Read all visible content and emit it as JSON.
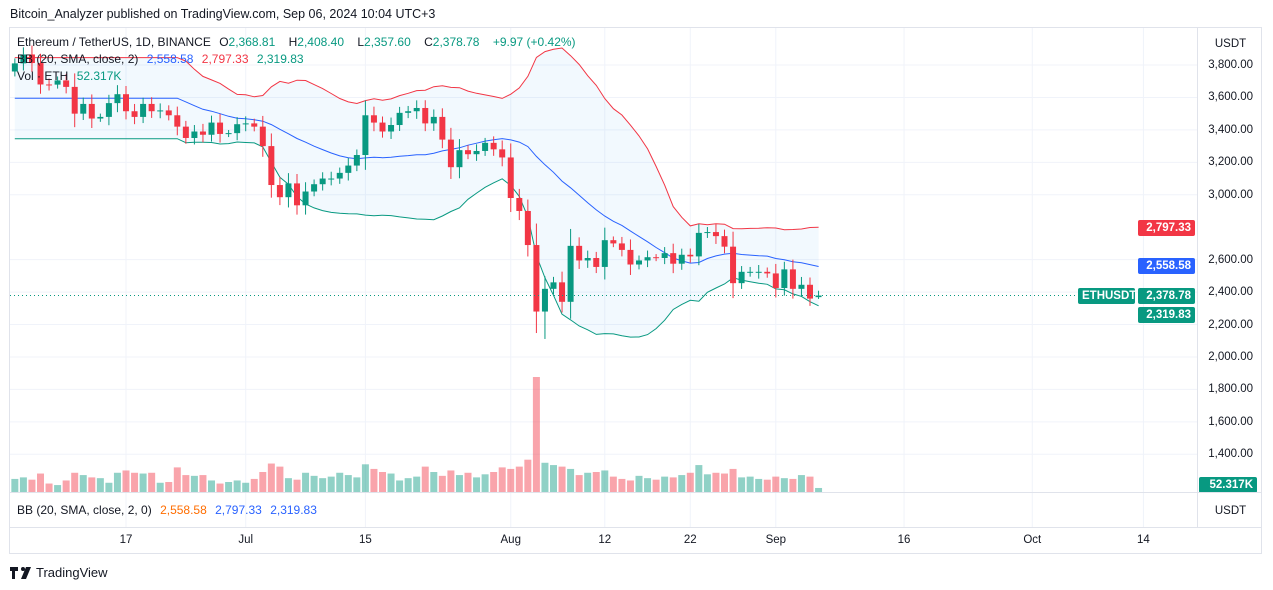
{
  "header": {
    "published": "Bitcoin_Analyzer published on TradingView.com, Sep 06, 2024 10:04 UTC+3"
  },
  "legend": {
    "symbol": "Ethereum / TetherUS, 1D, BINANCE",
    "open_label": "O",
    "open": "2,368.81",
    "high_label": "H",
    "high": "2,408.40",
    "low_label": "L",
    "low": "2,357.60",
    "close_label": "C",
    "close": "2,378.78",
    "change": "+9.97 (+0.42%)",
    "bb_label": "BB (20, SMA, close, 2)",
    "bb_basis": "2,558.58",
    "bb_upper": "2,797.33",
    "bb_lower": "2,319.83",
    "vol_label": "Vol · ETH",
    "vol_value": "52.317K"
  },
  "bb_pane": {
    "label": "BB (20, SMA, close, 2, 0)",
    "basis": "2,558.58",
    "upper": "2,797.33",
    "lower": "2,319.83",
    "unit": "USDT"
  },
  "price_axis": {
    "unit": "USDT",
    "ticks": [
      "3,800.00",
      "3,600.00",
      "3,400.00",
      "3,200.00",
      "3,000.00",
      "2,600.00",
      "2,400.00",
      "2,200.00",
      "2,000.00",
      "1,800.00",
      "1,600.00",
      "1,400.00"
    ],
    "tick_values": [
      3800,
      3600,
      3400,
      3200,
      3000,
      2600,
      2400,
      2200,
      2000,
      1800,
      1600,
      1400
    ],
    "tags": {
      "upper": "2,797.33",
      "basis": "2,558.58",
      "symbol": "ETHUSDT",
      "last": "2,378.78",
      "lower": "2,319.83",
      "volume": "52.317K"
    },
    "tag_values": {
      "upper": 2797.33,
      "basis": 2558.58,
      "last": 2378.78,
      "lower": 2319.83
    }
  },
  "time_axis": [
    {
      "label": "17",
      "date": "2024-06-17"
    },
    {
      "label": "Jul",
      "date": "2024-07-01"
    },
    {
      "label": "15",
      "date": "2024-07-15"
    },
    {
      "label": "Aug",
      "date": "2024-08-01"
    },
    {
      "label": "12",
      "date": "2024-08-12"
    },
    {
      "label": "22",
      "date": "2024-08-22"
    },
    {
      "label": "Sep",
      "date": "2024-09-01"
    },
    {
      "label": "16",
      "date": "2024-09-16"
    },
    {
      "label": "Oct",
      "date": "2024-10-01"
    },
    {
      "label": "14",
      "date": "2024-10-14"
    }
  ],
  "footer": {
    "brand": "TradingView"
  },
  "colors": {
    "up": "#089981",
    "down": "#f23645",
    "basis": "#2962ff",
    "upper": "#f23645",
    "lower": "#089981"
  },
  "chart_data": {
    "type": "candlestick",
    "start_date": "2024-06-04",
    "first_open": 3760,
    "close": [
      3810,
      3865,
      3812,
      3680,
      3679,
      3705,
      3665,
      3500,
      3560,
      3470,
      3480,
      3565,
      3620,
      3515,
      3480,
      3560,
      3515,
      3520,
      3490,
      3420,
      3350,
      3390,
      3370,
      3445,
      3375,
      3380,
      3435,
      3440,
      3420,
      3300,
      3060,
      2985,
      3070,
      2935,
      3020,
      3065,
      3100,
      3100,
      3135,
      3180,
      3245,
      3490,
      3445,
      3390,
      3430,
      3505,
      3515,
      3535,
      3440,
      3480,
      3340,
      3170,
      3275,
      3250,
      3270,
      3320,
      3280,
      3230,
      2980,
      2900,
      2690,
      2280,
      2420,
      2460,
      2340,
      2685,
      2595,
      2610,
      2555,
      2720,
      2700,
      2660,
      2570,
      2595,
      2615,
      2610,
      2640,
      2575,
      2630,
      2620,
      2765,
      2770,
      2745,
      2680,
      2455,
      2525,
      2525,
      2525,
      2515,
      2425,
      2540,
      2420,
      2445,
      2360,
      2378.78
    ],
    "last_candle": {
      "open": 2368.81,
      "high": 2408.4,
      "low": 2357.6,
      "close": 2378.78
    },
    "lowest_low": {
      "date": "2024-08-05",
      "value": 2111
    },
    "volume_k": [
      170,
      190,
      160,
      240,
      110,
      90,
      150,
      250,
      220,
      190,
      180,
      120,
      250,
      280,
      250,
      240,
      250,
      120,
      130,
      320,
      220,
      210,
      220,
      150,
      110,
      130,
      150,
      120,
      170,
      260,
      370,
      330,
      180,
      160,
      250,
      210,
      180,
      200,
      250,
      220,
      190,
      360,
      300,
      260,
      240,
      150,
      180,
      200,
      330,
      260,
      210,
      280,
      220,
      250,
      190,
      230,
      260,
      320,
      300,
      330,
      420,
      1500,
      380,
      350,
      330,
      300,
      220,
      250,
      260,
      280,
      200,
      170,
      150,
      210,
      180,
      160,
      200,
      190,
      220,
      250,
      350,
      230,
      250,
      240,
      300,
      190,
      200,
      170,
      160,
      200,
      180,
      170,
      220,
      200,
      52.317
    ]
  }
}
